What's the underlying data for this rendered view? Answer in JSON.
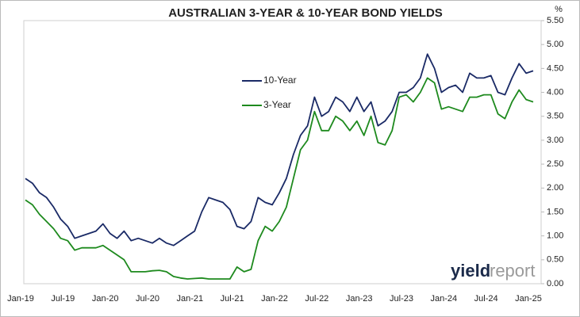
{
  "chart_data": {
    "type": "line",
    "title": "AUSTRALIAN 3-YEAR & 10-YEAR BOND YIELDS",
    "y_unit": "%",
    "watermark": [
      "yield",
      "report"
    ],
    "categories": [
      "Jan-19",
      null,
      null,
      null,
      null,
      null,
      "Jul-19",
      null,
      null,
      null,
      null,
      null,
      "Jan-20",
      null,
      null,
      null,
      null,
      null,
      "Jul-20",
      null,
      null,
      null,
      null,
      null,
      "Jan-21",
      null,
      null,
      null,
      null,
      null,
      "Jul-21",
      null,
      null,
      null,
      null,
      null,
      "Jan-22",
      null,
      null,
      null,
      null,
      null,
      "Jul-22",
      null,
      null,
      null,
      null,
      null,
      "Jan-23",
      null,
      null,
      null,
      null,
      null,
      "Jul-23",
      null,
      null,
      null,
      null,
      null,
      "Jan-24",
      null,
      null,
      null,
      null,
      null,
      "Jul-24",
      null,
      null,
      null,
      null,
      null,
      "Jan-25"
    ],
    "series": [
      {
        "name": "10-Year",
        "color": "#1a2a66",
        "values": [
          2.2,
          2.1,
          1.9,
          1.8,
          1.6,
          1.35,
          1.2,
          0.95,
          1.0,
          1.05,
          1.1,
          1.25,
          1.05,
          0.95,
          1.1,
          0.9,
          0.95,
          0.9,
          0.85,
          0.95,
          0.85,
          0.8,
          0.9,
          1.0,
          1.1,
          1.5,
          1.8,
          1.75,
          1.7,
          1.55,
          1.2,
          1.15,
          1.3,
          1.8,
          1.7,
          1.65,
          1.9,
          2.2,
          2.7,
          3.1,
          3.3,
          3.9,
          3.5,
          3.6,
          3.9,
          3.8,
          3.6,
          3.9,
          3.6,
          3.8,
          3.3,
          3.4,
          3.6,
          4.0,
          4.0,
          4.1,
          4.3,
          4.8,
          4.5,
          4.0,
          4.1,
          4.15,
          4.0,
          4.4,
          4.3,
          4.3,
          4.35,
          4.0,
          3.95,
          4.3,
          4.6,
          4.4,
          4.45
        ]
      },
      {
        "name": "3-Year",
        "color": "#1e8a1e",
        "values": [
          1.75,
          1.65,
          1.45,
          1.3,
          1.15,
          0.95,
          0.9,
          0.7,
          0.75,
          0.75,
          0.75,
          0.8,
          0.7,
          0.6,
          0.5,
          0.25,
          0.25,
          0.25,
          0.27,
          0.28,
          0.25,
          0.15,
          0.12,
          0.1,
          0.11,
          0.12,
          0.1,
          0.1,
          0.1,
          0.1,
          0.35,
          0.25,
          0.3,
          0.9,
          1.2,
          1.1,
          1.3,
          1.6,
          2.2,
          2.8,
          3.0,
          3.6,
          3.2,
          3.2,
          3.5,
          3.4,
          3.2,
          3.4,
          3.1,
          3.5,
          2.95,
          2.9,
          3.2,
          3.9,
          3.95,
          3.8,
          4.0,
          4.3,
          4.2,
          3.65,
          3.7,
          3.65,
          3.6,
          3.9,
          3.9,
          3.95,
          3.95,
          3.55,
          3.45,
          3.8,
          4.05,
          3.85,
          3.8
        ]
      }
    ],
    "ylim": [
      0,
      5.5
    ],
    "yticks": [
      {
        "value": 0,
        "label": "0.00"
      },
      {
        "value": 0.5,
        "label": "0.50"
      },
      {
        "value": 1,
        "label": "1.00"
      },
      {
        "value": 1.5,
        "label": "1.50"
      },
      {
        "value": 2,
        "label": "2.00"
      },
      {
        "value": 2.5,
        "label": "2.50"
      },
      {
        "value": 3,
        "label": "3.00"
      },
      {
        "value": 3.5,
        "label": "3.50"
      },
      {
        "value": 4,
        "label": "4.00"
      },
      {
        "value": 4.5,
        "label": "4.50"
      },
      {
        "value": 5,
        "label": "5.00"
      },
      {
        "value": 5.5,
        "label": "5.50"
      }
    ],
    "grid": false,
    "legend": "inside-top-center"
  }
}
